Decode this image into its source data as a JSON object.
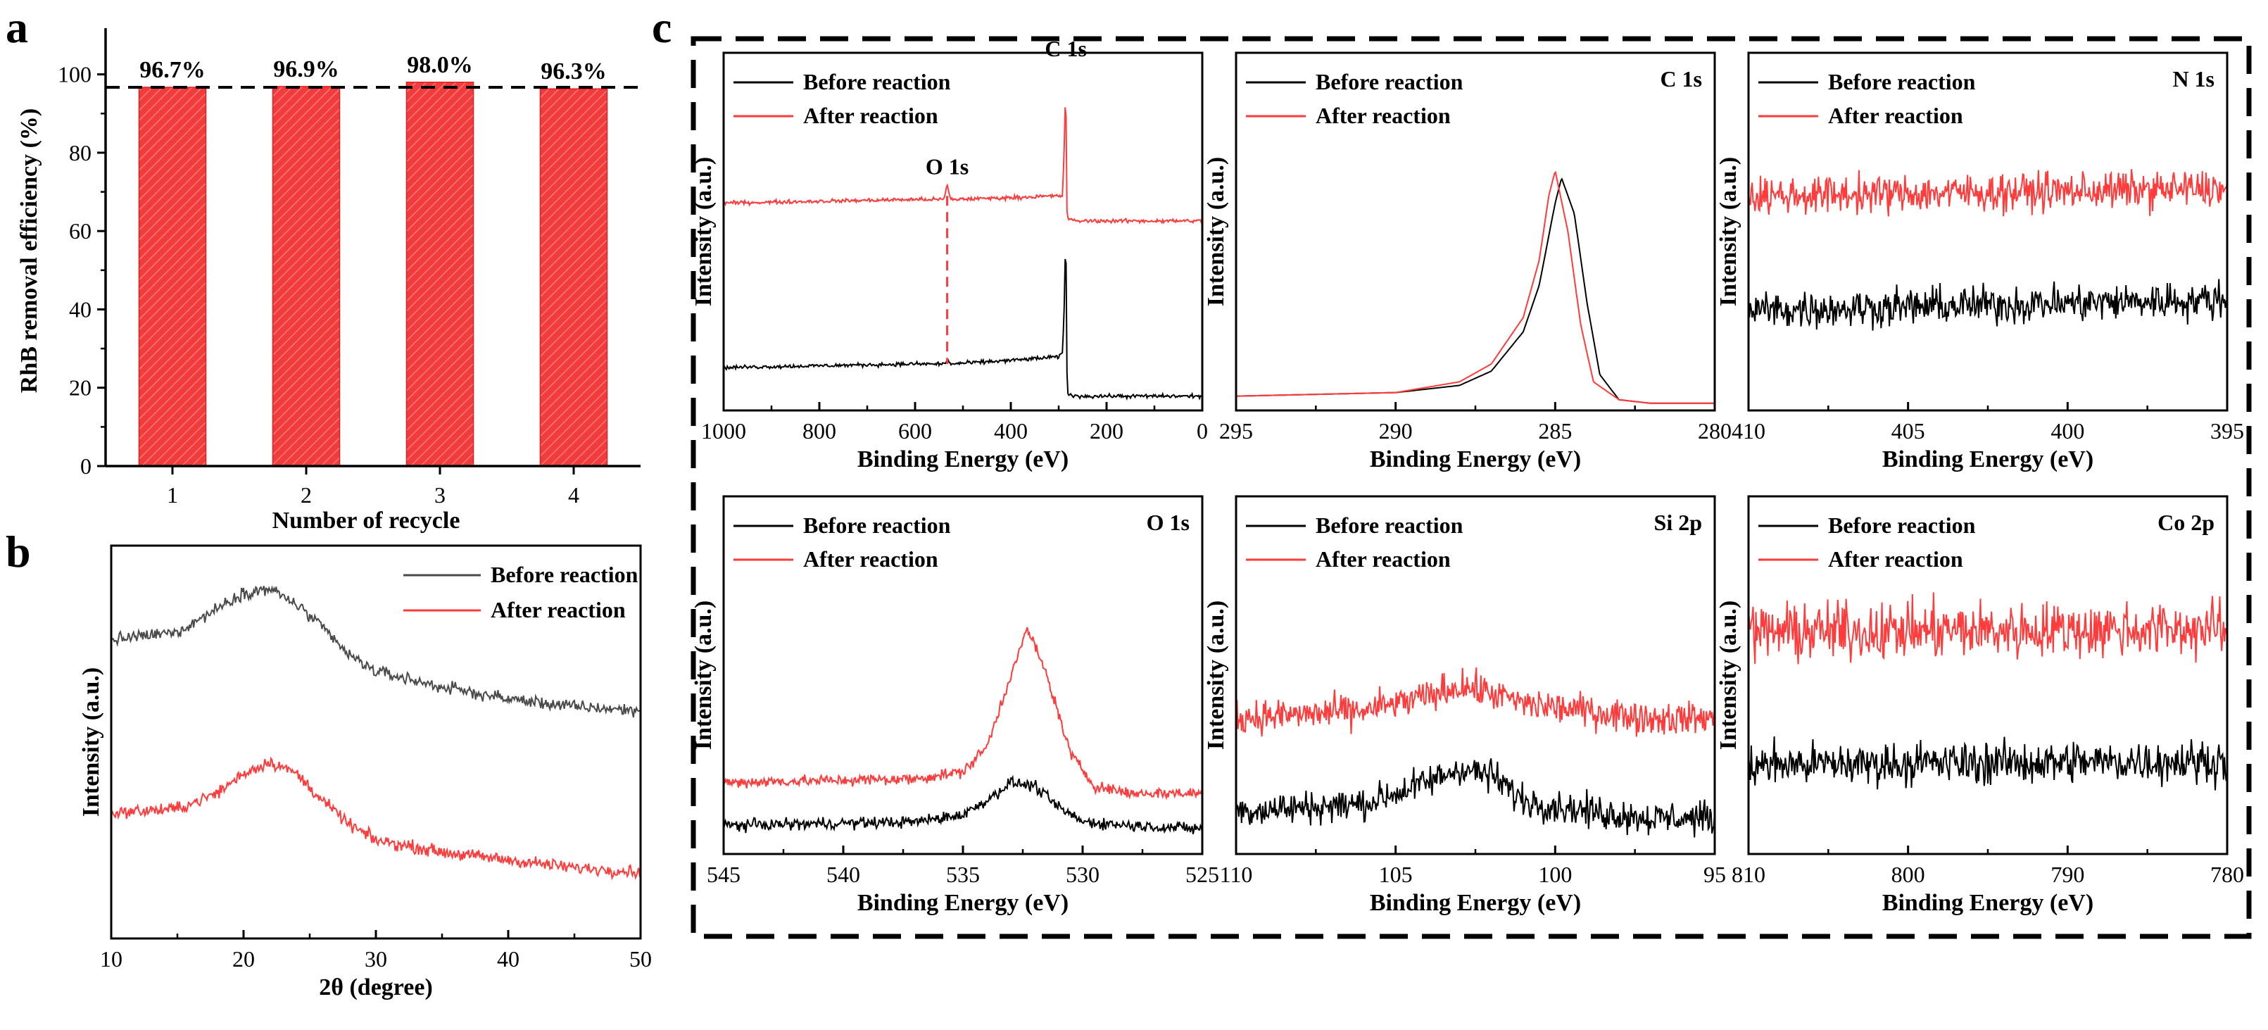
{
  "colors": {
    "before": "#000000",
    "after": "#ff3b3b",
    "xrd_before": "#4a4a4a",
    "bar": "#f23c3c"
  },
  "panel_labels": {
    "a": "a",
    "b": "b",
    "c": "c"
  },
  "chart_data": [
    {
      "id": "a",
      "type": "bar",
      "categories": [
        "1",
        "2",
        "3",
        "4"
      ],
      "values": [
        96.7,
        96.9,
        98.0,
        96.3
      ],
      "data_labels": [
        "96.7%",
        "96.9%",
        "98.0%",
        "96.3%"
      ],
      "reference_line": 96.7,
      "xlabel": "Number of recycle",
      "ylabel": "RhB removal efficiency (%)",
      "ylim": [
        0,
        110
      ],
      "yticks": [
        "0",
        "20",
        "40",
        "60",
        "80",
        "100"
      ]
    },
    {
      "id": "b",
      "type": "line",
      "xlabel": "2θ (degree)",
      "ylabel": "Intensity (a.u.)",
      "xlim": [
        10,
        50
      ],
      "xticks": [
        "10",
        "20",
        "30",
        "40",
        "50"
      ],
      "legend": [
        "Before reaction",
        "After reaction"
      ],
      "series": [
        {
          "name": "Before reaction",
          "x": [
            10,
            15,
            18,
            20,
            22,
            24,
            26,
            28,
            30,
            35,
            40,
            45,
            50
          ],
          "y": [
            0.76,
            0.78,
            0.84,
            0.88,
            0.89,
            0.85,
            0.79,
            0.72,
            0.68,
            0.64,
            0.61,
            0.59,
            0.58
          ],
          "noise": 0.012
        },
        {
          "name": "After reaction",
          "x": [
            10,
            15,
            18,
            20,
            22,
            24,
            26,
            28,
            30,
            35,
            40,
            45,
            50
          ],
          "y": [
            0.32,
            0.33,
            0.37,
            0.42,
            0.45,
            0.42,
            0.35,
            0.29,
            0.25,
            0.22,
            0.2,
            0.18,
            0.17
          ],
          "noise": 0.012
        }
      ]
    },
    {
      "id": "c-survey",
      "type": "line",
      "xlabel": "Binding Energy (eV)",
      "ylabel": "Intensity (a.u.)",
      "xlim": [
        1000,
        0
      ],
      "xticks": [
        "1000",
        "800",
        "600",
        "400",
        "200",
        "0"
      ],
      "legend": [
        "Before reaction",
        "After reaction"
      ],
      "annotations": [
        "O 1s",
        "C 1s"
      ],
      "series": [
        {
          "name": "Before reaction",
          "x": [
            1000,
            800,
            600,
            540,
            533,
            526,
            400,
            300,
            292,
            288,
            285,
            284,
            282,
            270,
            0
          ],
          "y": [
            0.12,
            0.125,
            0.13,
            0.13,
            0.14,
            0.13,
            0.14,
            0.15,
            0.16,
            0.3,
            0.55,
            0.2,
            0.05,
            0.04,
            0.04
          ],
          "noise": 0.004
        },
        {
          "name": "After reaction",
          "x": [
            1000,
            800,
            600,
            540,
            533,
            526,
            400,
            300,
            292,
            288,
            285,
            284,
            282,
            270,
            0
          ],
          "y": [
            0.58,
            0.585,
            0.59,
            0.59,
            0.63,
            0.59,
            0.595,
            0.6,
            0.6,
            0.75,
            0.95,
            0.6,
            0.54,
            0.53,
            0.53
          ],
          "noise": 0.004
        }
      ]
    },
    {
      "id": "c-C1s",
      "type": "line",
      "title": "C 1s",
      "xlabel": "Binding Energy (eV)",
      "ylabel": "Intensity (a.u.)",
      "xlim": [
        295,
        280
      ],
      "xticks": [
        "295",
        "290",
        "285",
        "280"
      ],
      "legend": [
        "Before reaction",
        "After reaction"
      ],
      "series": [
        {
          "name": "Before reaction",
          "x": [
            295,
            290,
            288,
            287,
            286,
            285.5,
            285,
            284.8,
            284.4,
            284,
            283.6,
            283,
            282,
            280
          ],
          "y": [
            0.04,
            0.05,
            0.07,
            0.11,
            0.22,
            0.35,
            0.58,
            0.65,
            0.55,
            0.3,
            0.1,
            0.03,
            0.02,
            0.02
          ],
          "noise": 0
        },
        {
          "name": "After reaction",
          "x": [
            295,
            290,
            288,
            287,
            286,
            285.5,
            285.2,
            285,
            284.6,
            284.2,
            283.8,
            283,
            282,
            280
          ],
          "y": [
            0.04,
            0.05,
            0.08,
            0.13,
            0.26,
            0.42,
            0.6,
            0.67,
            0.5,
            0.24,
            0.08,
            0.03,
            0.02,
            0.02
          ],
          "noise": 0
        }
      ]
    },
    {
      "id": "c-N1s",
      "type": "line",
      "title": "N 1s",
      "xlabel": "Binding Energy (eV)",
      "ylabel": "Intensity (a.u.)",
      "xlim": [
        410,
        395
      ],
      "xticks": [
        "410",
        "405",
        "400",
        "395"
      ],
      "legend": [
        "Before reaction",
        "After reaction"
      ],
      "series": [
        {
          "name": "Before reaction",
          "x": [
            410,
            395
          ],
          "y": [
            0.28,
            0.31
          ],
          "noise": 0.04
        },
        {
          "name": "After reaction",
          "x": [
            410,
            395
          ],
          "y": [
            0.6,
            0.62
          ],
          "noise": 0.04
        }
      ]
    },
    {
      "id": "c-O1s",
      "type": "line",
      "title": "O 1s",
      "xlabel": "Binding Energy (eV)",
      "ylabel": "Intensity (a.u.)",
      "xlim": [
        545,
        525
      ],
      "xticks": [
        "545",
        "540",
        "535",
        "530",
        "525"
      ],
      "legend": [
        "Before reaction",
        "After reaction"
      ],
      "series": [
        {
          "name": "Before reaction",
          "x": [
            545,
            537,
            535,
            534,
            533,
            532,
            531,
            530,
            528,
            525
          ],
          "y": [
            0.08,
            0.09,
            0.11,
            0.15,
            0.2,
            0.19,
            0.13,
            0.09,
            0.08,
            0.07
          ],
          "noise": 0.012
        },
        {
          "name": "After reaction",
          "x": [
            545,
            537,
            535,
            534,
            533,
            532.3,
            531.5,
            530.5,
            529.5,
            528,
            525
          ],
          "y": [
            0.2,
            0.21,
            0.23,
            0.3,
            0.5,
            0.63,
            0.5,
            0.28,
            0.19,
            0.17,
            0.17
          ],
          "noise": 0.012
        }
      ]
    },
    {
      "id": "c-Si2p",
      "type": "line",
      "title": "Si 2p",
      "xlabel": "Binding Energy (eV)",
      "ylabel": "Intensity (a.u.)",
      "xlim": [
        110,
        95
      ],
      "xticks": [
        "110",
        "105",
        "100",
        "95"
      ],
      "legend": [
        "Before reaction",
        "After reaction"
      ],
      "series": [
        {
          "name": "Before reaction",
          "x": [
            110,
            106,
            104,
            103,
            102,
            101,
            99,
            97,
            95
          ],
          "y": [
            0.12,
            0.14,
            0.2,
            0.24,
            0.22,
            0.15,
            0.12,
            0.1,
            0.1
          ],
          "noise": 0.035
        },
        {
          "name": "After reaction",
          "x": [
            110,
            106,
            104,
            103,
            102,
            101,
            99,
            97,
            95
          ],
          "y": [
            0.38,
            0.4,
            0.44,
            0.47,
            0.45,
            0.42,
            0.4,
            0.38,
            0.38
          ],
          "noise": 0.035
        }
      ]
    },
    {
      "id": "c-Co2p",
      "type": "line",
      "title": "Co 2p",
      "xlabel": "Binding Energy (eV)",
      "ylabel": "Intensity (a.u.)",
      "xlim": [
        810,
        780
      ],
      "xticks": [
        "810",
        "800",
        "790",
        "780"
      ],
      "legend": [
        "Before reaction",
        "After reaction"
      ],
      "series": [
        {
          "name": "Before reaction",
          "x": [
            810,
            780
          ],
          "y": [
            0.25,
            0.26
          ],
          "noise": 0.045
        },
        {
          "name": "After reaction",
          "x": [
            810,
            780
          ],
          "y": [
            0.62,
            0.63
          ],
          "noise": 0.06
        }
      ]
    }
  ]
}
